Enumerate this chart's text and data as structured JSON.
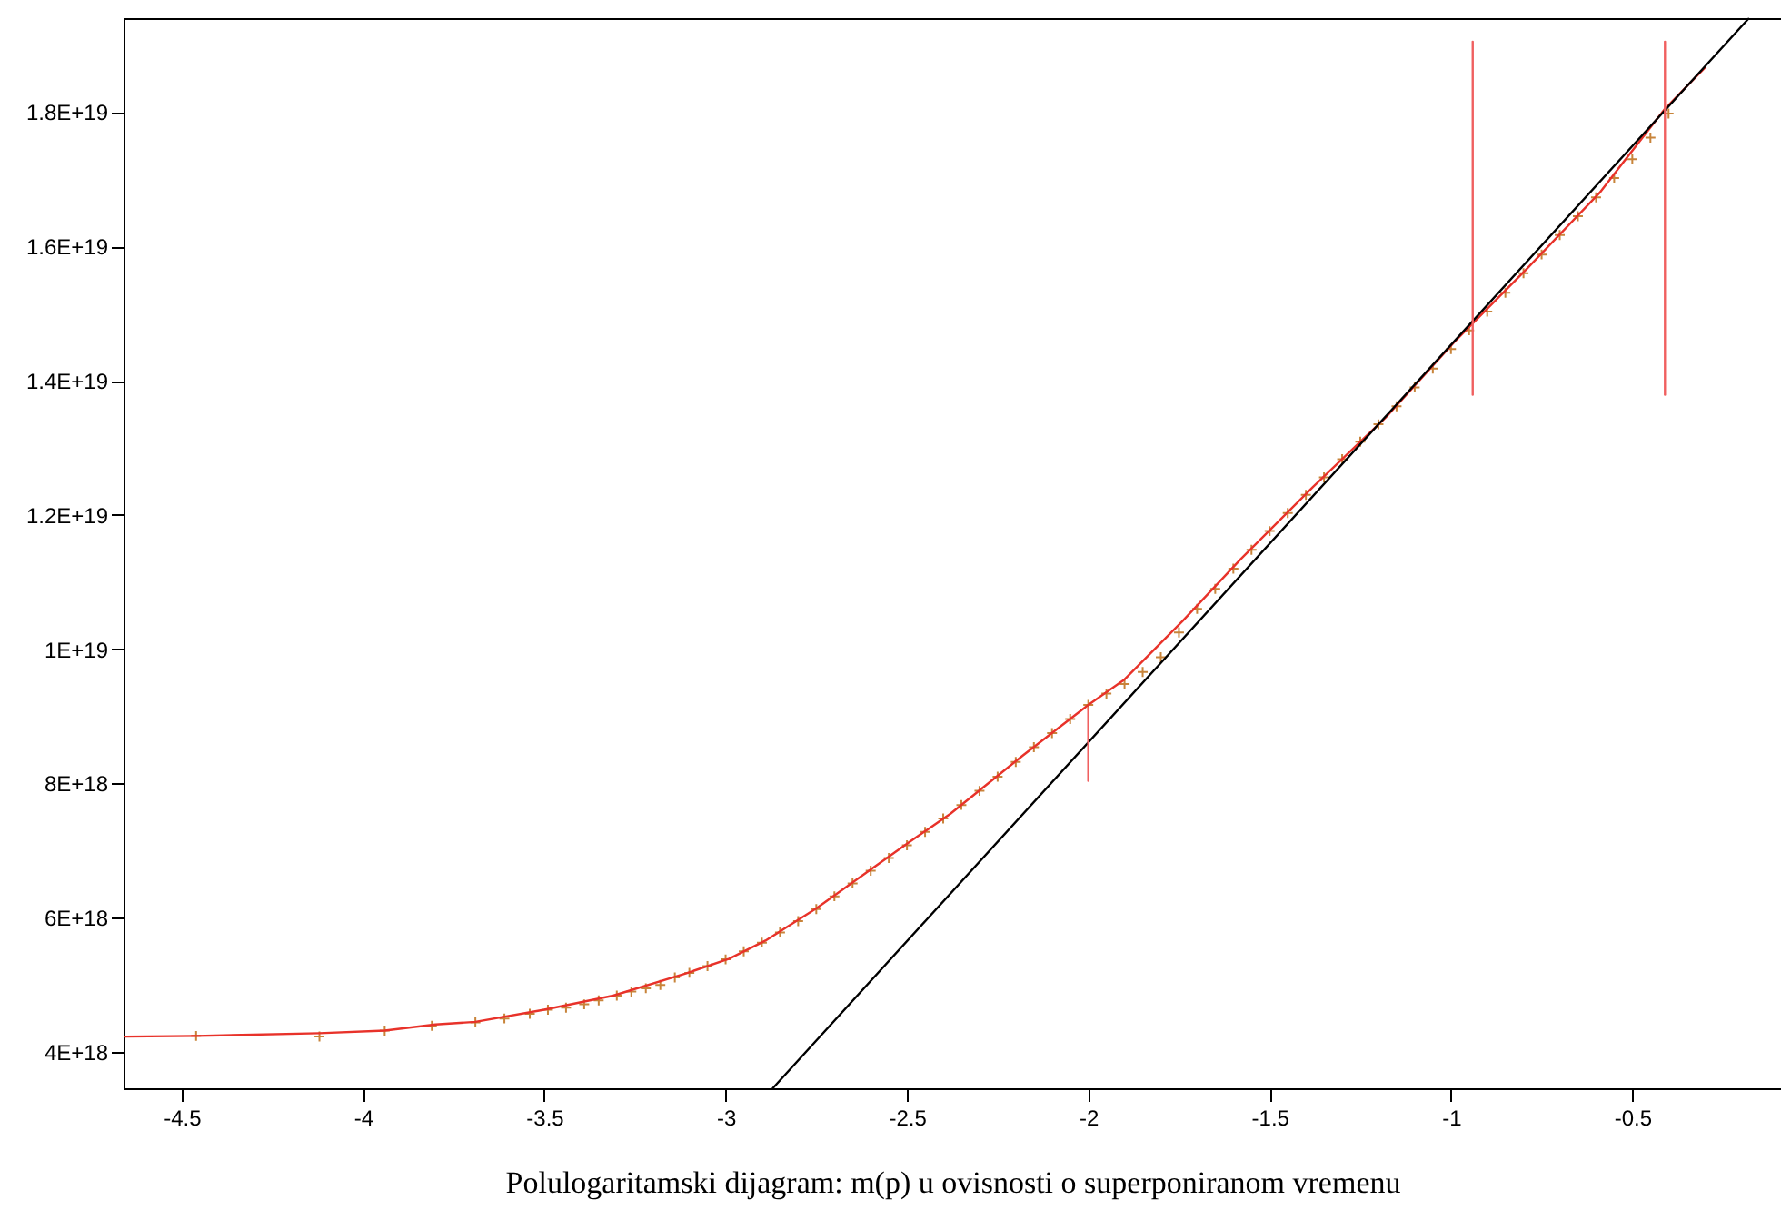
{
  "chart_data": {
    "type": "line",
    "xlabel": "Polulogaritamski dijagram: m(p) u ovisnosti o superponiranom vremenu",
    "xlim": [
      -4.66,
      -0.09
    ],
    "ylim": [
      3.46e+18,
      1.94e+19
    ],
    "xticks": [
      -4.5,
      -4,
      -3.5,
      -3,
      -2.5,
      -2,
      -1.5,
      -1,
      -0.5
    ],
    "yticks": [
      {
        "value": 4e+18,
        "label": "4E+18"
      },
      {
        "value": 6e+18,
        "label": "6E+18"
      },
      {
        "value": 8e+18,
        "label": "8E+18"
      },
      {
        "value": 1e+19,
        "label": "1E+19"
      },
      {
        "value": 1.2e+19,
        "label": "1.2E+19"
      },
      {
        "value": 1.4e+19,
        "label": "1.4E+19"
      },
      {
        "value": 1.6e+19,
        "label": "1.6E+19"
      },
      {
        "value": 1.8e+19,
        "label": "1.8E+19"
      }
    ],
    "series": [
      {
        "type": "scatter",
        "marker": "cross",
        "color": "#c8843a",
        "x": [
          -4.46,
          -4.12,
          -3.94,
          -3.81,
          -3.69,
          -3.61,
          -3.54,
          -3.49,
          -3.44,
          -3.39,
          -3.35,
          -3.3,
          -3.26,
          -3.22,
          -3.18,
          -3.14,
          -3.1,
          -3.05,
          -3.0,
          -2.95,
          -2.9,
          -2.85,
          -2.8,
          -2.75,
          -2.7,
          -2.65,
          -2.6,
          -2.55,
          -2.5,
          -2.45,
          -2.4,
          -2.35,
          -2.3,
          -2.25,
          -2.2,
          -2.15,
          -2.1,
          -2.05,
          -2.0,
          -1.95,
          -1.9,
          -1.85,
          -1.8,
          -1.75,
          -1.7,
          -1.65,
          -1.6,
          -1.55,
          -1.5,
          -1.45,
          -1.4,
          -1.35,
          -1.3,
          -1.25,
          -1.2,
          -1.15,
          -1.1,
          -1.05,
          -1.0,
          -0.95,
          -0.9,
          -0.85,
          -0.8,
          -0.75,
          -0.7,
          -0.65,
          -0.6,
          -0.55,
          -0.5,
          -0.45,
          -0.4
        ],
        "values": [
          4.24e+18,
          4.23e+18,
          4.32e+18,
          4.39e+18,
          4.44e+18,
          4.5e+18,
          4.57e+18,
          4.63e+18,
          4.66e+18,
          4.71e+18,
          4.77e+18,
          4.84e+18,
          4.9e+18,
          4.95e+18,
          5e+18,
          5.11e+18,
          5.18e+18,
          5.28e+18,
          5.38e+18,
          5.5e+18,
          5.63e+18,
          5.78e+18,
          5.95e+18,
          6.13e+18,
          6.32e+18,
          6.51e+18,
          6.7e+18,
          6.89e+18,
          7.08e+18,
          7.28e+18,
          7.48e+18,
          7.68e+18,
          7.89e+18,
          8.1e+18,
          8.32e+18,
          8.54e+18,
          8.75e+18,
          8.96e+18,
          9.17e+18,
          9.34e+18,
          9.48e+18,
          9.66e+18,
          9.88e+18,
          1.025e+19,
          1.06e+19,
          1.09e+19,
          1.12e+19,
          1.148e+19,
          1.176e+19,
          1.203e+19,
          1.23e+19,
          1.256e+19,
          1.283e+19,
          1.309e+19,
          1.335e+19,
          1.362e+19,
          1.39e+19,
          1.418e+19,
          1.447e+19,
          1.475e+19,
          1.503e+19,
          1.531e+19,
          1.56e+19,
          1.588e+19,
          1.617e+19,
          1.645e+19,
          1.673e+19,
          1.702e+19,
          1.73e+19,
          1.762e+19,
          1.798e+19
        ]
      },
      {
        "type": "line",
        "color": "#e8322a",
        "x": [
          -4.655,
          -4.46,
          -4.12,
          -3.94,
          -3.8,
          -3.69,
          -3.5,
          -3.31,
          -3.11,
          -2.99,
          -2.89,
          -2.75,
          -2.61,
          -2.49,
          -2.38,
          -2.18,
          -2.0,
          -1.9,
          -1.74,
          -1.58,
          -1.38,
          -1.18,
          -0.99,
          -0.79,
          -0.59,
          -0.41,
          -0.3
        ],
        "values": [
          4.23e+18,
          4.24e+18,
          4.28e+18,
          4.32e+18,
          4.41e+18,
          4.45e+18,
          4.63e+18,
          4.84e+18,
          5.17e+18,
          5.39e+18,
          5.66e+18,
          6.14e+18,
          6.68e+18,
          7.14e+18,
          7.55e+18,
          8.42e+18,
          9.17e+18,
          9.55e+18,
          1.042e+19,
          1.134e+19,
          1.242e+19,
          1.345e+19,
          1.458e+19,
          1.567e+19,
          1.68e+19,
          1.805e+19,
          1.866e+19
        ]
      },
      {
        "type": "line",
        "color": "#000000",
        "x": [
          -2.87,
          -0.18
        ],
        "values": [
          3.46e+18,
          1.939e+19
        ]
      },
      {
        "type": "line",
        "color": "#f06060",
        "x": [
          -2.0,
          -2.0
        ],
        "values": [
          8.04e+18,
          9.12e+18
        ]
      },
      {
        "type": "line",
        "color": "#f06060",
        "x": [
          -0.94,
          -0.94
        ],
        "values": [
          1.379e+19,
          1.905e+19
        ]
      },
      {
        "type": "line",
        "color": "#f06060",
        "x": [
          -0.41,
          -0.41
        ],
        "values": [
          1.379e+19,
          1.905e+19
        ]
      }
    ]
  }
}
